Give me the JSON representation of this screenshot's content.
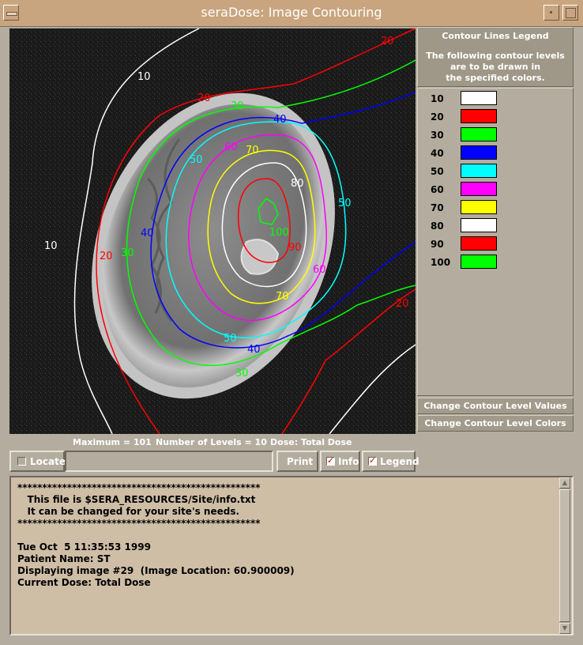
{
  "window": {
    "title": "seraDose: Image Contouring"
  },
  "legend": {
    "title": "Contour Lines Legend",
    "description": "The following contour levels\nare to be drawn in\nthe specified colors.",
    "levels": [
      {
        "value": "10",
        "color": "#ffffff"
      },
      {
        "value": "20",
        "color": "#ff0000"
      },
      {
        "value": "30",
        "color": "#00ff00"
      },
      {
        "value": "40",
        "color": "#0000ff"
      },
      {
        "value": "50",
        "color": "#00ffff"
      },
      {
        "value": "60",
        "color": "#ff00ff"
      },
      {
        "value": "70",
        "color": "#ffff00"
      },
      {
        "value": "80",
        "color": "#ffffff"
      },
      {
        "value": "90",
        "color": "#ff0000"
      },
      {
        "value": "100",
        "color": "#00ff00"
      }
    ]
  },
  "buttons": {
    "change_values": "Change Contour Level Values",
    "change_colors": "Change Contour Level Colors",
    "locate": "Locate",
    "print": "Print",
    "info": "Info",
    "legend": "Legend"
  },
  "toggles": {
    "locate": false,
    "info": true,
    "legend": true
  },
  "status": {
    "maximum": "Maximum = 101",
    "levels": "Number of Levels = 10",
    "dose": "Dose: Total Dose"
  },
  "contour_labels": {
    "l10a": "10",
    "l10b": "10",
    "l20a": "20",
    "l20b": "20",
    "l20c": "20",
    "l20d": "20",
    "l30a": "30",
    "l30b": "30",
    "l30c": "30",
    "l40a": "40",
    "l40b": "40",
    "l40c": "40",
    "l50a": "50",
    "l50b": "50",
    "l50c": "50",
    "l60a": "60",
    "l60b": "60",
    "l70a": "70",
    "l70b": "70",
    "l80": "80",
    "l90": "90",
    "l100": "100"
  },
  "info": {
    "text": "*************************************************\n   This file is $SERA_RESOURCES/Site/info.txt\n   It can be changed for your site's needs.\n*************************************************\n\nTue Oct  5 11:35:53 1999\nPatient Name: ST\nDisplaying image #29  (Image Location: 60.900009)\nCurrent Dose: Total Dose"
  }
}
